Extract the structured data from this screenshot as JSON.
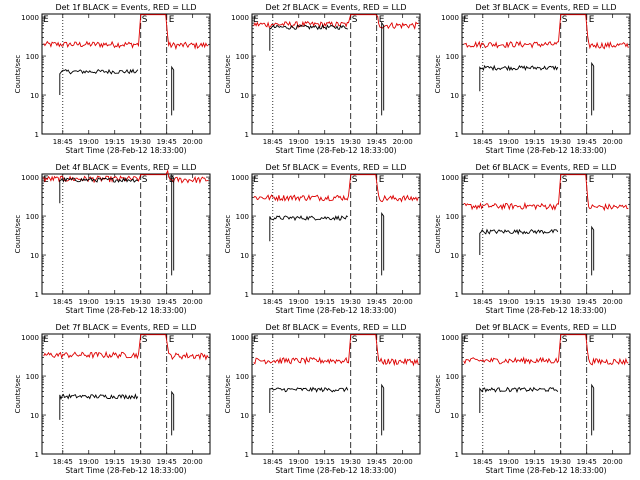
{
  "figure": {
    "xlabel": "Start Time (28-Feb-12 18:33:00)",
    "ylabel": "Counts/sec",
    "x_tick_labels": [
      "18:45",
      "19:00",
      "19:15",
      "19:30",
      "19:45",
      "20:00"
    ],
    "y_tick_labels": [
      "1",
      "10",
      "100",
      "1000"
    ],
    "marker_labels": [
      "E",
      "S",
      "E"
    ],
    "colors": {
      "events": "#000000",
      "lld": "#dd0000"
    }
  },
  "chart_data": [
    {
      "type": "line",
      "title": "Det 1f BLACK = Events, RED = LLD",
      "xlabel": "Start Time (28-Feb-12 18:33:00)",
      "ylabel": "Counts/sec",
      "yscale": "log",
      "ylim": [
        1,
        1200
      ],
      "x_ticks": [
        "18:45",
        "19:00",
        "19:15",
        "19:30",
        "19:45",
        "20:00"
      ],
      "markers": {
        "dotted": "18:45",
        "S": "19:30",
        "E": "19:45"
      },
      "series": [
        {
          "name": "Events",
          "color": "black",
          "level": 40,
          "segment": "18:45-19:30"
        },
        {
          "name": "LLD",
          "color": "red",
          "level": 200,
          "segment": "18:33-20:10"
        }
      ]
    },
    {
      "type": "line",
      "title": "Det 2f BLACK = Events, RED = LLD",
      "xlabel": "Start Time (28-Feb-12 18:33:00)",
      "ylabel": "Counts/sec",
      "yscale": "log",
      "ylim": [
        1,
        1200
      ],
      "x_ticks": [
        "18:45",
        "19:00",
        "19:15",
        "19:30",
        "19:45",
        "20:00"
      ],
      "markers": {
        "dotted": "18:45",
        "S": "19:30",
        "E": "19:45"
      },
      "series": [
        {
          "name": "Events",
          "color": "black",
          "level": 550,
          "segment": "18:45-19:30"
        },
        {
          "name": "LLD",
          "color": "red",
          "level": 650,
          "segment": "18:33-20:10"
        }
      ]
    },
    {
      "type": "line",
      "title": "Det 3f BLACK = Events, RED = LLD",
      "xlabel": "Start Time (28-Feb-12 18:33:00)",
      "ylabel": "Counts/sec",
      "yscale": "log",
      "ylim": [
        1,
        1200
      ],
      "x_ticks": [
        "18:45",
        "19:00",
        "19:15",
        "19:30",
        "19:45",
        "20:00"
      ],
      "markers": {
        "dotted": "18:45",
        "S": "19:30",
        "E": "19:45"
      },
      "series": [
        {
          "name": "Events",
          "color": "black",
          "level": 50,
          "segment": "18:45-19:30"
        },
        {
          "name": "LLD",
          "color": "red",
          "level": 200,
          "segment": "18:33-20:10"
        }
      ]
    },
    {
      "type": "line",
      "title": "Det 4f BLACK = Events, RED = LLD",
      "xlabel": "Start Time (28-Feb-12 18:33:00)",
      "ylabel": "Counts/sec",
      "yscale": "log",
      "ylim": [
        1,
        1200
      ],
      "x_ticks": [
        "18:45",
        "19:00",
        "19:15",
        "19:30",
        "19:45",
        "20:00"
      ],
      "markers": {
        "dotted": "18:45",
        "S": "19:30",
        "E": "19:45"
      },
      "series": [
        {
          "name": "Events",
          "color": "black",
          "level": 850,
          "segment": "18:45-19:30"
        },
        {
          "name": "LLD",
          "color": "red",
          "level": 900,
          "segment": "18:33-20:10"
        }
      ]
    },
    {
      "type": "line",
      "title": "Det 5f BLACK = Events, RED = LLD",
      "xlabel": "Start Time (28-Feb-12 18:33:00)",
      "ylabel": "Counts/sec",
      "yscale": "log",
      "ylim": [
        1,
        1200
      ],
      "x_ticks": [
        "18:45",
        "19:00",
        "19:15",
        "19:30",
        "19:45",
        "20:00"
      ],
      "markers": {
        "dotted": "18:45",
        "S": "19:30",
        "E": "19:45"
      },
      "series": [
        {
          "name": "Events",
          "color": "black",
          "level": 90,
          "segment": "18:45-19:30"
        },
        {
          "name": "LLD",
          "color": "red",
          "level": 300,
          "segment": "18:33-20:10"
        }
      ]
    },
    {
      "type": "line",
      "title": "Det 6f BLACK = Events, RED = LLD",
      "xlabel": "Start Time (28-Feb-12 18:33:00)",
      "ylabel": "Counts/sec",
      "yscale": "log",
      "ylim": [
        1,
        1200
      ],
      "x_ticks": [
        "18:45",
        "19:00",
        "19:15",
        "19:30",
        "19:45",
        "20:00"
      ],
      "markers": {
        "dotted": "18:45",
        "S": "19:30",
        "E": "19:45"
      },
      "series": [
        {
          "name": "Events",
          "color": "black",
          "level": 40,
          "segment": "18:45-19:30"
        },
        {
          "name": "LLD",
          "color": "red",
          "level": 180,
          "segment": "18:33-20:10"
        }
      ]
    },
    {
      "type": "line",
      "title": "Det 7f BLACK = Events, RED = LLD",
      "xlabel": "Start Time (28-Feb-12 18:33:00)",
      "ylabel": "Counts/sec",
      "yscale": "log",
      "ylim": [
        1,
        1200
      ],
      "x_ticks": [
        "18:45",
        "19:00",
        "19:15",
        "19:30",
        "19:45",
        "20:00"
      ],
      "markers": {
        "dotted": "18:45",
        "S": "19:30",
        "E": "19:45"
      },
      "series": [
        {
          "name": "Events",
          "color": "black",
          "level": 30,
          "segment": "18:45-19:30"
        },
        {
          "name": "LLD",
          "color": "red",
          "level": 350,
          "segment": "18:33-20:10"
        }
      ]
    },
    {
      "type": "line",
      "title": "Det 8f BLACK = Events, RED = LLD",
      "xlabel": "Start Time (28-Feb-12 18:33:00)",
      "ylabel": "Counts/sec",
      "yscale": "log",
      "ylim": [
        1,
        1200
      ],
      "x_ticks": [
        "18:45",
        "19:00",
        "19:15",
        "19:30",
        "19:45",
        "20:00"
      ],
      "markers": {
        "dotted": "18:45",
        "S": "19:30",
        "E": "19:45"
      },
      "series": [
        {
          "name": "Events",
          "color": "black",
          "level": 45,
          "segment": "18:45-19:30"
        },
        {
          "name": "LLD",
          "color": "red",
          "level": 250,
          "segment": "18:33-20:10"
        }
      ]
    },
    {
      "type": "line",
      "title": "Det 9f BLACK = Events, RED = LLD",
      "xlabel": "Start Time (28-Feb-12 18:33:00)",
      "ylabel": "Counts/sec",
      "yscale": "log",
      "ylim": [
        1,
        1200
      ],
      "x_ticks": [
        "18:45",
        "19:00",
        "19:15",
        "19:30",
        "19:45",
        "20:00"
      ],
      "markers": {
        "dotted": "18:45",
        "S": "19:30",
        "E": "19:45"
      },
      "series": [
        {
          "name": "Events",
          "color": "black",
          "level": 45,
          "segment": "18:45-19:30"
        },
        {
          "name": "LLD",
          "color": "red",
          "level": 250,
          "segment": "18:33-20:10"
        }
      ]
    }
  ]
}
